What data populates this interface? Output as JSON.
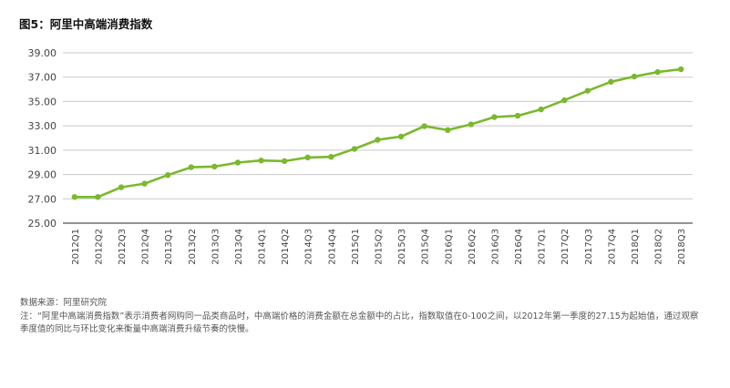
{
  "title": "图5：阿里中高端消费指数",
  "source": "数据来源：阿里研究院",
  "note": "注：“阿里中高端消费指数”表示消费者网购同一品类商品时，中高端价格的消费金额在总金额中的占比，指数取值在0-100之间，以2012年第一季度的27.15为起始值，通过观察季度值的同比与环比变化来衡量中高端消费升级节奏的快慢。",
  "colors": {
    "line": "#7ab82e",
    "grid": "#c8c8c8",
    "axis": "#555555"
  },
  "chart_data": {
    "type": "line",
    "title": "图5：阿里中高端消费指数",
    "xlabel": "",
    "ylabel": "",
    "ylim": [
      25,
      39
    ],
    "yticks": [
      "25.00",
      "27.00",
      "29.00",
      "31.00",
      "33.00",
      "35.00",
      "37.00",
      "39.00"
    ],
    "grid": true,
    "legend": "none",
    "categories": [
      "2012Q1",
      "2012Q2",
      "2012Q3",
      "2012Q4",
      "2013Q1",
      "2013Q2",
      "2013Q3",
      "2013Q4",
      "2014Q1",
      "2014Q2",
      "2014Q3",
      "2014Q4",
      "2015Q1",
      "2015Q2",
      "2015Q3",
      "2015Q4",
      "2016Q1",
      "2016Q2",
      "2016Q3",
      "2016Q4",
      "2017Q1",
      "2017Q2",
      "2017Q3",
      "2017Q4",
      "2018Q1",
      "2018Q2",
      "2018Q3"
    ],
    "series": [
      {
        "values": [
          27.15,
          27.15,
          27.95,
          28.25,
          28.95,
          29.6,
          29.65,
          29.98,
          30.15,
          30.1,
          30.4,
          30.45,
          31.1,
          31.85,
          32.12,
          32.97,
          32.65,
          33.12,
          33.72,
          33.83,
          34.35,
          35.1,
          35.88,
          36.62,
          37.05,
          37.42,
          37.65
        ]
      }
    ]
  }
}
